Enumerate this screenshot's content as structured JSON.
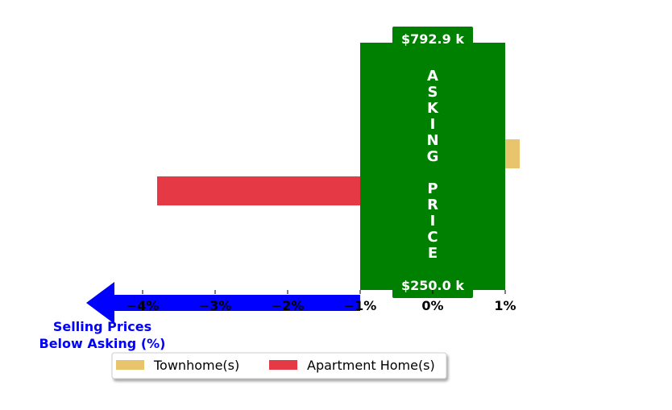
{
  "chart_data": {
    "type": "bar",
    "orientation": "horizontal",
    "x_unit": "%",
    "xlim": [
      -4.6,
      1.2
    ],
    "xticks": [
      -4,
      -3,
      -2,
      -1,
      0,
      1
    ],
    "xtick_labels": [
      "−4%",
      "−3%",
      "−2%",
      "−1%",
      "0%",
      "1%"
    ],
    "series": [
      {
        "name": "Townhome(s)",
        "value": 1.2,
        "color": "#e8c46c"
      },
      {
        "name": "Apartment Home(s)",
        "value": -3.8,
        "color": "#e63946"
      }
    ],
    "asking_band": {
      "range": [
        -1,
        1
      ],
      "color": "#008000",
      "text": "ASKING PRICE",
      "top_label": "$792.9 k",
      "bottom_label": "$250.0 k"
    },
    "below_asking_arrow": {
      "color": "#0000ff",
      "label_line1": "Selling Prices",
      "label_line2": "Below Asking (%)"
    },
    "legend": {
      "placement": "bottom-center",
      "columns": 2
    },
    "grid": false
  }
}
